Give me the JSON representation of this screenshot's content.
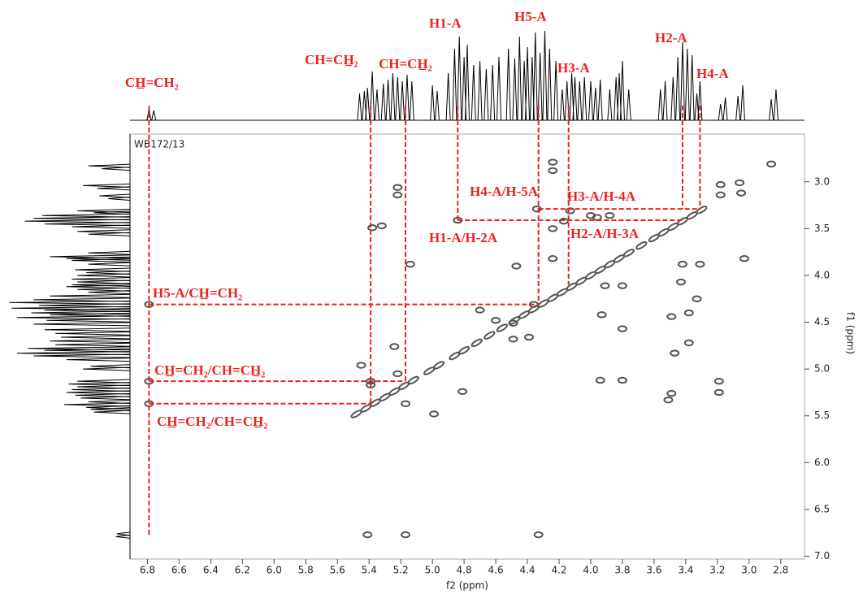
{
  "chart_data": {
    "type": "cosy",
    "corner_label": "WB172/13",
    "xlabel": "f2 (ppm)",
    "ylabel": "f1 (ppm)",
    "xlim": [
      6.91,
      2.65
    ],
    "ylim": [
      2.49,
      7.03
    ],
    "xticks": [
      6.8,
      6.6,
      6.4,
      6.2,
      {
        "value": 6,
        "label": "6.0"
      },
      5.8,
      5.6,
      5.4,
      5.2,
      {
        "value": 5,
        "label": "5.0"
      },
      4.8,
      4.6,
      4.4,
      4.2,
      {
        "value": 4,
        "label": "4.0"
      },
      3.8,
      3.6,
      3.4,
      3.2,
      {
        "value": 3,
        "label": "3.0"
      },
      2.8
    ],
    "yticks": [
      {
        "value": 3,
        "label": "3.0"
      },
      3.5,
      {
        "value": 4,
        "label": "4.0"
      },
      4.5,
      {
        "value": 5,
        "label": "5.0"
      },
      5.5,
      {
        "value": 6,
        "label": "6.0"
      },
      6.5,
      {
        "value": 7,
        "label": "7.0"
      }
    ],
    "contour_color": "#555555",
    "trace_color": "#000000",
    "guide_color": "#e8231f",
    "projection": {
      "x": [
        6.79,
        6.76,
        5.46,
        5.43,
        5.41,
        5.38,
        5.35,
        5.31,
        5.28,
        5.25,
        5.22,
        5.19,
        5.16,
        5.13,
        5.0,
        4.97,
        4.9,
        4.86,
        4.83,
        4.8,
        4.78,
        4.74,
        4.7,
        4.66,
        4.62,
        4.58,
        4.52,
        4.48,
        4.45,
        4.42,
        4.4,
        4.37,
        4.35,
        4.32,
        4.29,
        4.26,
        4.22,
        4.18,
        4.15,
        4.12,
        4.1,
        4.07,
        4.04,
        4.0,
        3.97,
        3.94,
        3.88,
        3.84,
        3.82,
        3.8,
        3.76,
        3.56,
        3.53,
        3.48,
        3.45,
        3.42,
        3.39,
        3.36,
        3.33,
        3.31,
        3.18,
        3.15,
        3.07,
        3.04,
        2.86,
        2.83
      ],
      "values": [
        13,
        12,
        33,
        36,
        40,
        60,
        38,
        45,
        50,
        58,
        53,
        48,
        56,
        48,
        43,
        36,
        58,
        88,
        103,
        78,
        93,
        68,
        73,
        63,
        68,
        78,
        88,
        76,
        103,
        73,
        90,
        78,
        108,
        83,
        110,
        88,
        73,
        38,
        48,
        58,
        53,
        48,
        53,
        48,
        40,
        50,
        38,
        53,
        58,
        73,
        38,
        38,
        48,
        53,
        78,
        96,
        88,
        80,
        33,
        48,
        20,
        28,
        30,
        43,
        26,
        38
      ]
    },
    "peaks": {
      "x": [
        2.86,
        3.06,
        3.05,
        3.18,
        3.18,
        4.24,
        4.24,
        5.22,
        5.22,
        5.32,
        5.38,
        5.14,
        4.84,
        4.34,
        4.13,
        4.0,
        3.96,
        3.88,
        4.17,
        4.24,
        4.47,
        4.24,
        3.91,
        3.8,
        3.93,
        3.8,
        4.36,
        4.7,
        4.6,
        4.49,
        4.39,
        4.49,
        6.79,
        6.79,
        6.79,
        5.45,
        5.24,
        5.39,
        5.39,
        5.22,
        5.17,
        4.99,
        4.81,
        5.41,
        5.17,
        4.33,
        3.03,
        3.31,
        3.42,
        3.43,
        3.33,
        3.38,
        3.49,
        3.38,
        3.47,
        3.51,
        3.49,
        3.19,
        3.19,
        3.8,
        3.94,
        5.48,
        5.42,
        5.36,
        5.3,
        5.24,
        5.18,
        5.12,
        5.02,
        4.96,
        4.86,
        4.8,
        4.72,
        4.64,
        4.56,
        4.48,
        4.42,
        4.36,
        4.3,
        4.24,
        4.18,
        4.12,
        4.06,
        4.0,
        3.94,
        3.88,
        3.82,
        3.76,
        3.68,
        3.6,
        3.54,
        3.48,
        3.42,
        3.36,
        3.3
      ],
      "y": [
        2.81,
        3.01,
        3.12,
        3.03,
        3.14,
        2.79,
        2.88,
        3.06,
        3.14,
        3.47,
        3.49,
        3.88,
        3.41,
        3.29,
        3.31,
        3.36,
        3.38,
        3.36,
        3.42,
        3.5,
        3.9,
        3.82,
        4.11,
        4.11,
        4.42,
        4.57,
        4.31,
        4.37,
        4.48,
        4.51,
        4.66,
        4.68,
        4.31,
        5.13,
        5.37,
        4.96,
        4.76,
        5.17,
        5.13,
        5.05,
        5.37,
        5.48,
        5.24,
        6.77,
        6.77,
        6.77,
        3.82,
        3.88,
        3.88,
        4.07,
        4.25,
        4.4,
        4.44,
        4.72,
        4.83,
        5.33,
        5.26,
        5.13,
        5.25,
        5.12,
        5.12,
        5.48,
        5.42,
        5.36,
        5.3,
        5.24,
        5.18,
        5.12,
        5.02,
        4.96,
        4.86,
        4.8,
        4.72,
        4.64,
        4.56,
        4.48,
        4.42,
        4.36,
        4.3,
        4.24,
        4.18,
        4.12,
        4.06,
        4.0,
        3.94,
        3.88,
        3.82,
        3.76,
        3.68,
        3.6,
        3.54,
        3.48,
        3.42,
        3.36,
        3.3
      ]
    },
    "assignments": [
      {
        "label": "CH̲=CH₂",
        "f2": 6.79,
        "f1_end": 6.77
      },
      {
        "label": "CH=CH̲₂",
        "f2": 5.39,
        "f1_end": 5.37
      },
      {
        "label": "CH=CH̲₂",
        "f2": 5.17,
        "f1_end": 5.13
      },
      {
        "label": "H1-A",
        "f2": 4.84,
        "f1_end": 3.41
      },
      {
        "label": "H5-A",
        "f2": 4.33,
        "f1_end": 4.31
      },
      {
        "label": "H3-A",
        "f2": 4.14,
        "f1_end": 4.1
      },
      {
        "label": "H2-A",
        "f2": 3.42,
        "f1_end": 3.29
      },
      {
        "label": "H4-A",
        "f2": 3.31,
        "f1_end": 3.27
      }
    ],
    "guides": [
      {
        "f1": 3.41,
        "f2": [
          4.84,
          3.42
        ]
      },
      {
        "f1": 3.29,
        "f2": [
          4.33,
          3.31
        ]
      },
      {
        "f1": 4.31,
        "f2": [
          6.79,
          4.33
        ]
      },
      {
        "f1": 5.13,
        "f2": [
          6.79,
          5.17
        ]
      },
      {
        "f1": 5.37,
        "f2": [
          6.79,
          5.39
        ]
      }
    ],
    "cross_labels": [
      "H4-A/H-5A",
      "H3-A/H-4A",
      "H1-A/H-2A",
      "H2-A/H-3A",
      "H5-A/CH̲=CH₂",
      "CH̲=CH₂/CH=CH̲₂",
      "CH̲=CH₂/CH=CH̲₂"
    ]
  }
}
